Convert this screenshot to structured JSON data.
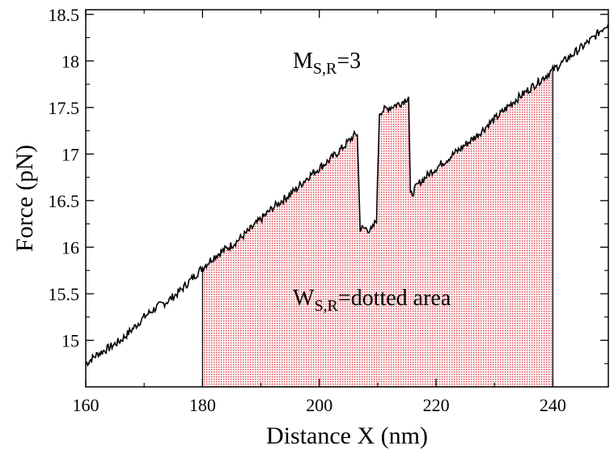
{
  "chart_data": {
    "type": "line",
    "xlabel": "Distance X (nm)",
    "ylabel": "Force (pN)",
    "xlim": [
      160,
      249.5
    ],
    "ylim": [
      14.5,
      18.55
    ],
    "xticks": [
      160,
      180,
      200,
      220,
      240
    ],
    "xtick_labels": [
      "160",
      "180",
      "200",
      "220",
      "240"
    ],
    "yticks": [
      15,
      15.5,
      16,
      16.5,
      17,
      17.5,
      18,
      18.5
    ],
    "ytick_labels": [
      "15",
      "15.5",
      "16",
      "16.5",
      "17",
      "17.5",
      "18",
      "18.5"
    ],
    "grid": false,
    "annotations": [
      {
        "main": "M",
        "sub": "S,R",
        "rest": "=3"
      },
      {
        "main": "W",
        "sub": "S,R",
        "rest": "=dotted area"
      }
    ],
    "shaded_region": {
      "x_start": 180,
      "x_end": 240,
      "color": "#cc0000",
      "fill_style": "dotted"
    },
    "series": [
      {
        "color": "#000000",
        "points": [
          [
            160,
            14.75
          ],
          [
            162,
            14.85
          ],
          [
            164,
            14.92
          ],
          [
            166,
            15.0
          ],
          [
            168,
            15.12
          ],
          [
            170,
            15.25
          ],
          [
            172,
            15.35
          ],
          [
            174,
            15.42
          ],
          [
            176,
            15.52
          ],
          [
            178,
            15.65
          ],
          [
            180,
            15.78
          ],
          [
            182,
            15.9
          ],
          [
            184,
            15.98
          ],
          [
            186,
            16.07
          ],
          [
            188,
            16.18
          ],
          [
            190,
            16.3
          ],
          [
            192,
            16.42
          ],
          [
            194,
            16.52
          ],
          [
            196,
            16.62
          ],
          [
            198,
            16.75
          ],
          [
            200,
            16.85
          ],
          [
            202,
            16.95
          ],
          [
            204,
            17.07
          ],
          [
            206,
            17.2
          ],
          [
            206.5,
            17.22
          ],
          [
            207,
            16.2
          ],
          [
            208,
            16.2
          ],
          [
            209,
            16.18
          ],
          [
            209.8,
            16.3
          ],
          [
            210.3,
            17.45
          ],
          [
            212,
            17.5
          ],
          [
            214,
            17.55
          ],
          [
            215,
            17.6
          ],
          [
            215.3,
            17.62
          ],
          [
            215.6,
            16.55
          ],
          [
            217,
            16.68
          ],
          [
            219,
            16.8
          ],
          [
            221,
            16.9
          ],
          [
            223,
            17.0
          ],
          [
            225,
            17.1
          ],
          [
            227,
            17.2
          ],
          [
            229,
            17.32
          ],
          [
            231,
            17.43
          ],
          [
            233,
            17.55
          ],
          [
            235,
            17.65
          ],
          [
            237,
            17.75
          ],
          [
            239,
            17.85
          ],
          [
            241,
            17.95
          ],
          [
            243,
            18.05
          ],
          [
            245,
            18.15
          ],
          [
            247,
            18.25
          ],
          [
            249,
            18.38
          ],
          [
            249.5,
            18.4
          ]
        ]
      }
    ]
  }
}
